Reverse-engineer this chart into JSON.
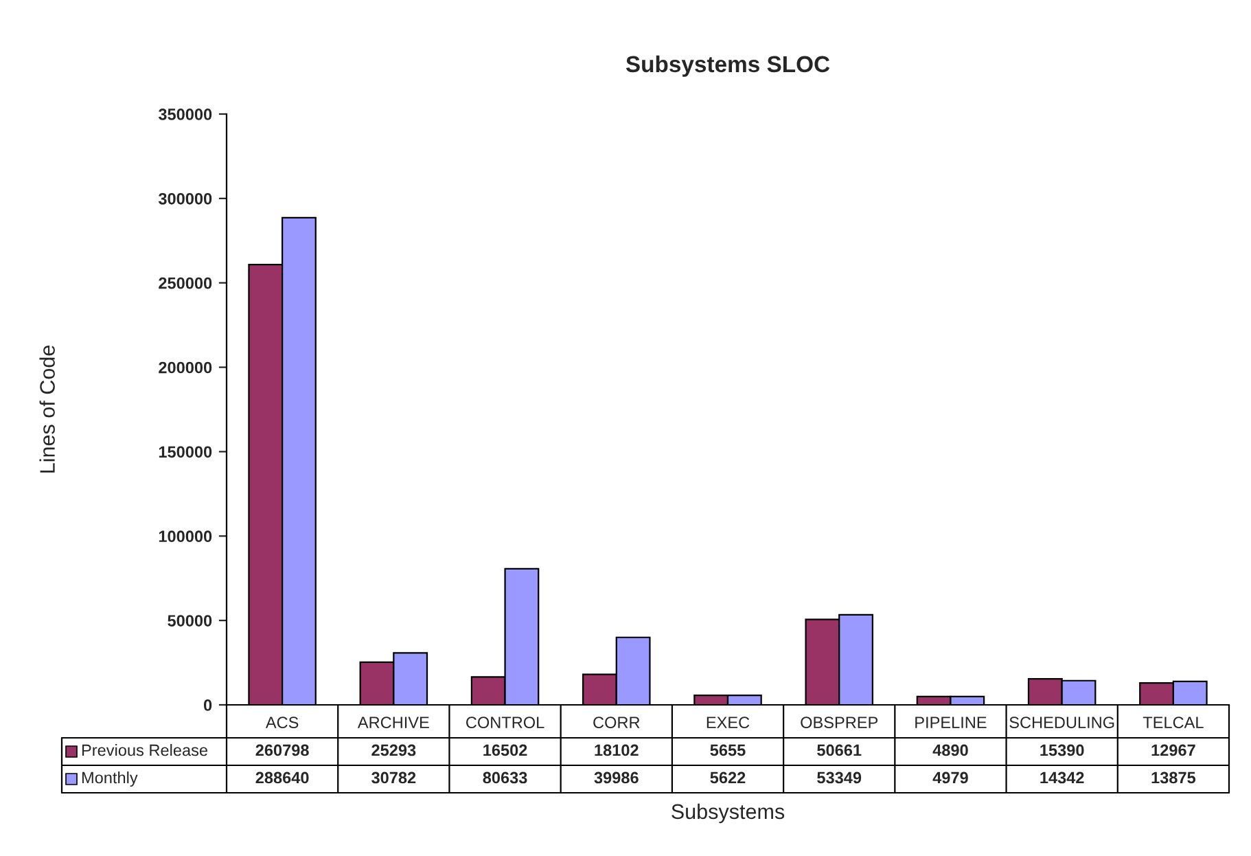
{
  "chart_data": {
    "type": "bar",
    "title": "Subsystems SLOC",
    "xlabel": "Subsystems",
    "ylabel": "Lines of Code",
    "categories": [
      "ACS",
      "ARCHIVE",
      "CONTROL",
      "CORR",
      "EXEC",
      "OBSPREP",
      "PIPELINE",
      "SCHEDULING",
      "TELCAL"
    ],
    "series": [
      {
        "name": "Previous Release",
        "color": "#993366",
        "values": [
          260798,
          25293,
          16502,
          18102,
          5655,
          50661,
          4890,
          15390,
          12967
        ]
      },
      {
        "name": "Monthly",
        "color": "#9999ff",
        "values": [
          288640,
          30782,
          80633,
          39986,
          5622,
          53349,
          4979,
          14342,
          13875
        ]
      }
    ],
    "ylim": [
      0,
      350000
    ],
    "yticks": [
      0,
      50000,
      100000,
      150000,
      200000,
      250000,
      300000,
      350000
    ],
    "grid": false,
    "legend": "bottom",
    "data_labels": true
  }
}
